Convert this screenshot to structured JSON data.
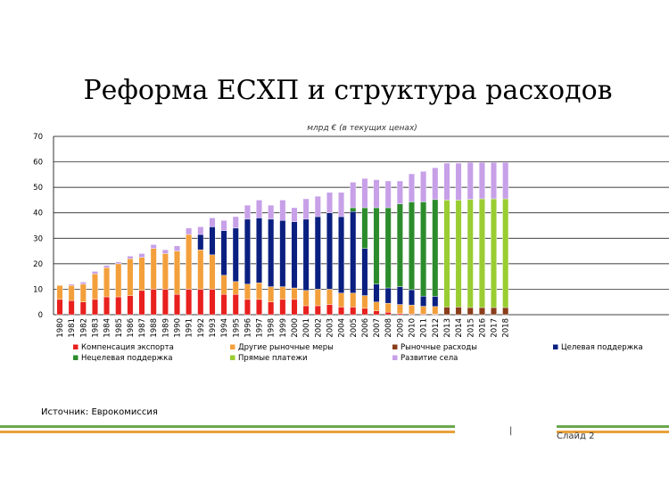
{
  "slide": {
    "title": "Реформа ЕСХП и структура расходов",
    "source": "Источник: Еврокомиссия",
    "slide_label": "Слайд 2",
    "slide_mark": "|"
  },
  "colors": {
    "export": "#e8201e",
    "other_market": "#f3a03c",
    "market": "#8a3d1a",
    "targeted": "#0a1f80",
    "nontargeted": "#2c8c2c",
    "direct": "#9acd32",
    "rural": "#c7a0e8",
    "stripe_green": "#6aa84f",
    "stripe_orange": "#e8a13a"
  },
  "chart_data": {
    "type": "bar",
    "stacked": true,
    "subtitle": "млрд € (в текущих ценах)",
    "ylim": [
      0,
      70
    ],
    "yticks": [
      0,
      10,
      20,
      30,
      40,
      50,
      60,
      70
    ],
    "grid": true,
    "legend_position": "bottom",
    "categories": [
      "1980",
      "1981",
      "1982",
      "1983",
      "1984",
      "1985",
      "1986",
      "1987",
      "1988",
      "1989",
      "1990",
      "1991",
      "1992",
      "1993",
      "1994",
      "1995",
      "1996",
      "1997",
      "1998",
      "1999",
      "2000",
      "2001",
      "2002",
      "2003",
      "2004",
      "2005",
      "2006",
      "2007",
      "2008",
      "2009",
      "2010",
      "2011",
      "2012",
      "2013",
      "2014",
      "2015",
      "2016",
      "2017",
      "2018"
    ],
    "series": [
      {
        "name": "Компенсация экспорта",
        "key": "export",
        "values": [
          6,
          5.5,
          5,
          6,
          7,
          7,
          7.5,
          9.5,
          10,
          10,
          8,
          10,
          10,
          10,
          8,
          8,
          6,
          6,
          5,
          6,
          6,
          3.5,
          3.5,
          4,
          3,
          3,
          2.5,
          1.5,
          1,
          0.5,
          0.3,
          0.3,
          0.2,
          0,
          0,
          0,
          0,
          0,
          0
        ]
      },
      {
        "name": "Другие рыночные меры",
        "key": "other_market",
        "values": [
          5.5,
          6,
          7,
          10,
          11.5,
          13,
          14.5,
          13,
          16,
          14,
          17,
          21.5,
          15.5,
          13.5,
          7.5,
          5,
          6,
          6.5,
          6,
          5,
          4.5,
          6,
          6.5,
          6,
          5.5,
          5.5,
          5,
          3.5,
          3.5,
          3.5,
          3.5,
          3,
          3,
          0,
          0,
          0,
          0,
          0,
          0
        ]
      },
      {
        "name": "Рыночные расходы",
        "key": "market",
        "values": [
          0,
          0,
          0,
          0,
          0,
          0,
          0,
          0,
          0,
          0,
          0,
          0,
          0,
          0,
          0,
          0,
          0,
          0,
          0,
          0,
          0,
          0,
          0,
          0,
          0,
          0,
          0,
          0,
          0,
          0,
          0,
          0,
          0,
          3,
          3,
          2.8,
          2.8,
          2.8,
          2.8
        ]
      },
      {
        "name": "Целевая поддержка",
        "key": "targeted",
        "values": [
          0,
          0,
          0,
          0,
          0,
          0,
          0,
          0,
          0,
          0,
          0,
          0,
          6,
          11,
          17.5,
          21,
          25.5,
          25.5,
          26.5,
          26,
          26,
          28,
          28.5,
          30,
          30,
          32,
          18.5,
          7,
          6,
          7,
          6,
          4,
          4,
          0,
          0,
          0,
          0,
          0,
          0
        ]
      },
      {
        "name": "Нецелевая поддержка",
        "key": "nontargeted",
        "values": [
          0,
          0,
          0,
          0,
          0,
          0,
          0,
          0,
          0,
          0,
          0,
          0,
          0,
          0,
          0,
          0,
          0,
          0,
          0,
          0,
          0,
          0,
          0,
          0,
          0,
          1.5,
          16,
          30,
          31.5,
          32.5,
          34.5,
          37,
          38,
          0,
          0,
          0,
          0,
          0,
          0
        ]
      },
      {
        "name": "Прямые платежи",
        "key": "direct",
        "values": [
          0,
          0,
          0,
          0,
          0,
          0,
          0,
          0,
          0,
          0,
          0,
          0,
          0,
          0,
          0,
          0,
          0,
          0,
          0,
          0,
          0,
          0,
          0,
          0,
          0,
          0,
          0,
          0,
          0,
          0,
          0,
          0,
          0,
          42,
          42,
          42.5,
          42.7,
          42.7,
          42.7
        ]
      },
      {
        "name": "Развитие села",
        "key": "rural",
        "values": [
          0,
          0.5,
          0.8,
          1,
          0.8,
          0.7,
          1,
          1.5,
          1.5,
          1.5,
          2,
          2.5,
          3,
          3.5,
          4,
          4.5,
          5.5,
          7,
          5.5,
          8,
          5.5,
          8,
          8,
          8,
          9.5,
          10,
          11.5,
          11,
          10.5,
          9,
          11,
          12,
          12.5,
          14.5,
          14.5,
          14.5,
          14.3,
          14.3,
          14.3
        ]
      }
    ]
  }
}
